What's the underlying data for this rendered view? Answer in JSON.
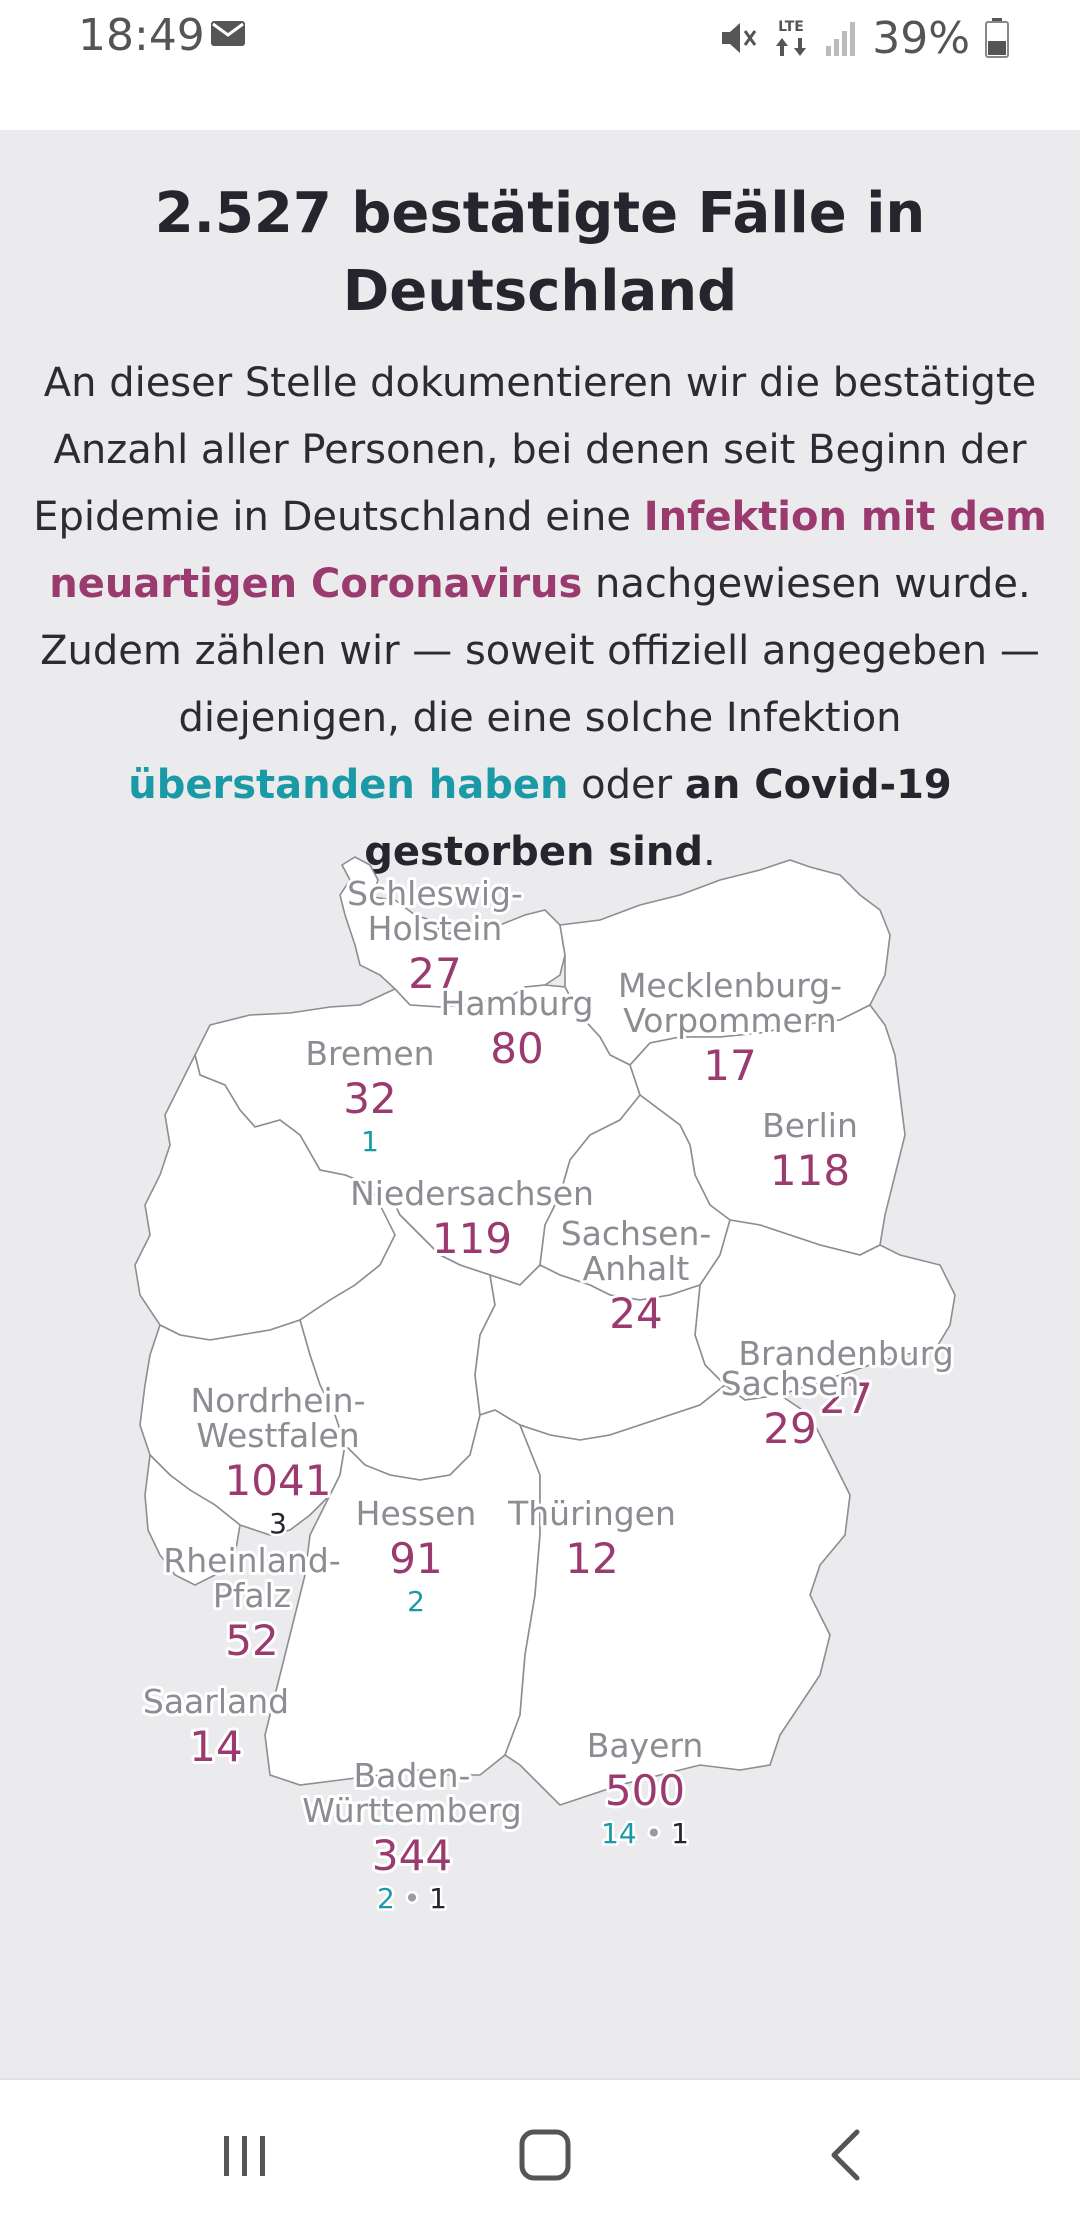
{
  "status_bar": {
    "time": "18:49",
    "notification_icon": "mail-icon",
    "network": "LTE",
    "battery_percent": "39%"
  },
  "headline": "2.527 bestätigte Fälle in Deutschland",
  "intro": {
    "part1": "An dieser Stelle dokumentieren wir die bestätigte Anzahl aller Personen, bei denen seit Beginn der Epidemie in Deutschland eine ",
    "link_infected": "Infektion mit dem neuartigen Coronavirus",
    "part2": " nachgewiesen wurde. Zudem zählen wir — soweit offiziell angegeben — diejenigen, die eine solche Infektion ",
    "link_recovered": "überstanden haben",
    "part3": " oder ",
    "link_dead": "an Covid-19 gestorben sind",
    "part4": "."
  },
  "colors": {
    "infected": "#9b3a6e",
    "recovered": "#1a9aa6",
    "dead": "#25252d",
    "background": "#ebebed"
  },
  "states": [
    {
      "id": "schleswig-holstein",
      "name_lines": [
        "Schleswig-",
        "Holstein"
      ],
      "confirmed": "27",
      "recovered": "",
      "deaths": ""
    },
    {
      "id": "mecklenburg-vorpommern",
      "name_lines": [
        "Mecklenburg-",
        "Vorpommern"
      ],
      "confirmed": "17",
      "recovered": "",
      "deaths": ""
    },
    {
      "id": "hamburg",
      "name_lines": [
        "Hamburg"
      ],
      "confirmed": "80",
      "recovered": "",
      "deaths": ""
    },
    {
      "id": "bremen",
      "name_lines": [
        "Bremen"
      ],
      "confirmed": "32",
      "recovered": "1",
      "deaths": ""
    },
    {
      "id": "berlin",
      "name_lines": [
        "Berlin"
      ],
      "confirmed": "118",
      "recovered": "",
      "deaths": ""
    },
    {
      "id": "niedersachsen",
      "name_lines": [
        "Niedersachsen"
      ],
      "confirmed": "119",
      "recovered": "",
      "deaths": ""
    },
    {
      "id": "sachsen-anhalt",
      "name_lines": [
        "Sachsen-",
        "Anhalt"
      ],
      "confirmed": "24",
      "recovered": "",
      "deaths": ""
    },
    {
      "id": "brandenburg",
      "name_lines": [
        "Brandenburg"
      ],
      "confirmed": "27",
      "recovered": "",
      "deaths": ""
    },
    {
      "id": "nordrhein-westfalen",
      "name_lines": [
        "Nordrhein-",
        "Westfalen"
      ],
      "confirmed": "1041",
      "recovered": "",
      "deaths": "3"
    },
    {
      "id": "sachsen",
      "name_lines": [
        "Sachsen"
      ],
      "confirmed": "29",
      "recovered": "",
      "deaths": ""
    },
    {
      "id": "hessen",
      "name_lines": [
        "Hessen"
      ],
      "confirmed": "91",
      "recovered": "2",
      "deaths": ""
    },
    {
      "id": "thueringen",
      "name_lines": [
        "Thüringen"
      ],
      "confirmed": "12",
      "recovered": "",
      "deaths": ""
    },
    {
      "id": "rheinland-pfalz",
      "name_lines": [
        "Rheinland-",
        "Pfalz"
      ],
      "confirmed": "52",
      "recovered": "",
      "deaths": ""
    },
    {
      "id": "saarland",
      "name_lines": [
        "Saarland"
      ],
      "confirmed": "14",
      "recovered": "",
      "deaths": ""
    },
    {
      "id": "bayern",
      "name_lines": [
        "Bayern"
      ],
      "confirmed": "500",
      "recovered": "14",
      "deaths": "1"
    },
    {
      "id": "baden-wuerttemberg",
      "name_lines": [
        "Baden-",
        "Württemberg"
      ],
      "confirmed": "344",
      "recovered": "2",
      "deaths": "1"
    }
  ],
  "nav_bar": {
    "recents_icon": "recents-icon",
    "home_icon": "home-icon",
    "back_icon": "back-icon"
  }
}
